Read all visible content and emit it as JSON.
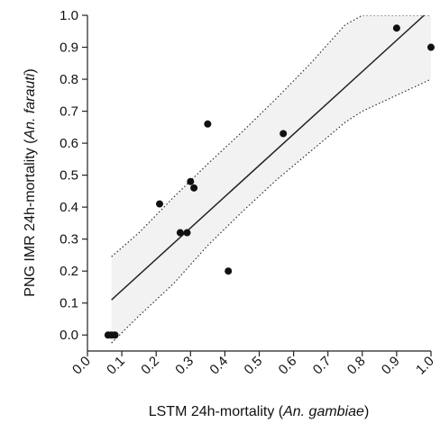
{
  "chart_data": {
    "type": "scatter",
    "title": "",
    "xlabel": {
      "prefix": "LSTM 24h-mortality (",
      "italic": "An. gambiae",
      "suffix": ")"
    },
    "ylabel": {
      "prefix": "PNG IMR 24h-mortality (",
      "italic": "An. farauti",
      "suffix": ")"
    },
    "xlim": [
      0.0,
      1.0
    ],
    "ylim": [
      -0.05,
      1.0
    ],
    "xticks": [
      "0.0",
      "0.1",
      "0.2",
      "0.3",
      "0.4",
      "0.5",
      "0.6",
      "0.7",
      "0.8",
      "0.9",
      "1.0"
    ],
    "yticks": [
      "0.0",
      "0.1",
      "0.2",
      "0.3",
      "0.4",
      "0.5",
      "0.6",
      "0.7",
      "0.8",
      "0.9",
      "1.0"
    ],
    "grid": false,
    "points": [
      {
        "x": 0.06,
        "y": 0.0
      },
      {
        "x": 0.07,
        "y": 0.0
      },
      {
        "x": 0.08,
        "y": 0.0
      },
      {
        "x": 0.21,
        "y": 0.41
      },
      {
        "x": 0.27,
        "y": 0.32
      },
      {
        "x": 0.29,
        "y": 0.32
      },
      {
        "x": 0.3,
        "y": 0.48
      },
      {
        "x": 0.31,
        "y": 0.46
      },
      {
        "x": 0.35,
        "y": 0.66
      },
      {
        "x": 0.41,
        "y": 0.2
      },
      {
        "x": 0.57,
        "y": 0.63
      },
      {
        "x": 0.9,
        "y": 0.96
      },
      {
        "x": 1.0,
        "y": 0.9
      }
    ],
    "fit_line": {
      "x": [
        0.07,
        0.98
      ],
      "y": [
        0.11,
        1.0
      ]
    },
    "confidence_band": {
      "x": [
        0.07,
        0.15,
        0.25,
        0.35,
        0.45,
        0.55,
        0.65,
        0.75,
        0.8,
        0.9,
        1.0
      ],
      "upper": [
        0.245,
        0.32,
        0.43,
        0.535,
        0.635,
        0.74,
        0.85,
        0.97,
        1.0,
        1.0,
        1.0
      ],
      "lower": [
        -0.025,
        0.06,
        0.16,
        0.28,
        0.385,
        0.485,
        0.575,
        0.665,
        0.7,
        0.75,
        0.8
      ]
    }
  },
  "colors": {
    "points": "#111111",
    "fit_line": "#222222",
    "band_fill": "#f2f2f2",
    "band_edge": "#222222",
    "axes": "#222222"
  }
}
